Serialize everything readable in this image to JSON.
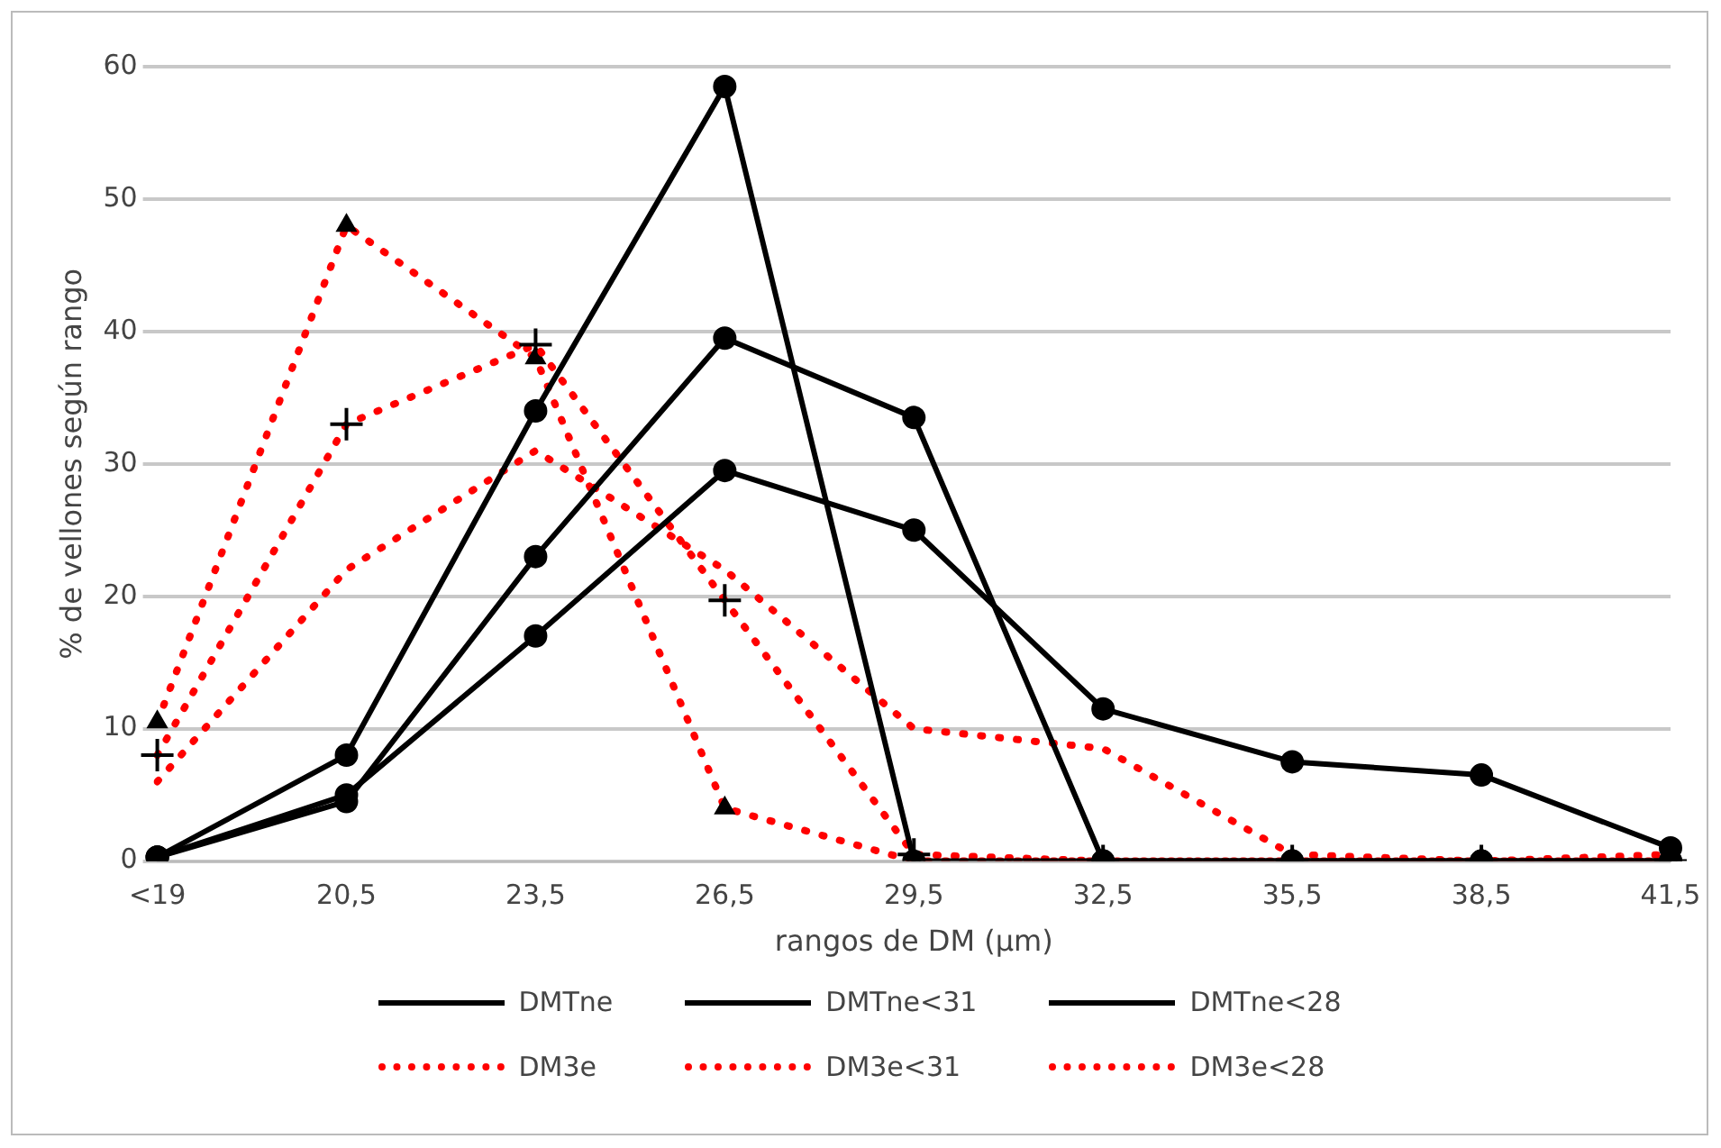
{
  "chart_data": {
    "type": "line",
    "xlabel": "rangos de DM (μm)",
    "ylabel": "% de vellones según rango",
    "categories": [
      "<19",
      "20,5",
      "23,5",
      "26,5",
      "29,5",
      "32,5",
      "35,5",
      "38,5",
      "41,5"
    ],
    "ylim": [
      0,
      60
    ],
    "yticks": [
      0,
      10,
      20,
      30,
      40,
      50,
      60
    ],
    "grid": "y",
    "legend": "bottom",
    "series": [
      {
        "name": "DMTne",
        "color": "#000000",
        "marker": "circle",
        "line_style": "solid",
        "values": [
          0.3,
          5,
          17,
          29.5,
          25,
          11.5,
          7.5,
          6.5,
          1
        ]
      },
      {
        "name": "DMTne<31",
        "color": "#000000",
        "marker": "circle",
        "line_style": "solid",
        "values": [
          0.3,
          4.5,
          23,
          39.5,
          33.5,
          0,
          0,
          0,
          0
        ]
      },
      {
        "name": "DMTne<28",
        "color": "#000000",
        "marker": "circle",
        "line_style": "solid",
        "values": [
          0.3,
          8,
          34,
          58.5,
          0,
          0,
          0,
          0,
          0
        ]
      },
      {
        "name": "DM3e",
        "color": "#ff0000",
        "marker": "none",
        "line_style": "dotted",
        "values": [
          6,
          22,
          31,
          22,
          10,
          8.5,
          0.5,
          0,
          0.5
        ]
      },
      {
        "name": "DM3e<31",
        "color": "#ff0000",
        "marker": "cross",
        "line_style": "dotted",
        "values": [
          8,
          33,
          39,
          19.7,
          0.5,
          0,
          0,
          0,
          0
        ]
      },
      {
        "name": "DM3e<28",
        "color": "#ff0000",
        "marker": "triangle",
        "line_style": "dotted",
        "values": [
          10.5,
          48,
          38,
          4,
          0,
          0,
          0,
          0,
          0
        ]
      }
    ]
  }
}
